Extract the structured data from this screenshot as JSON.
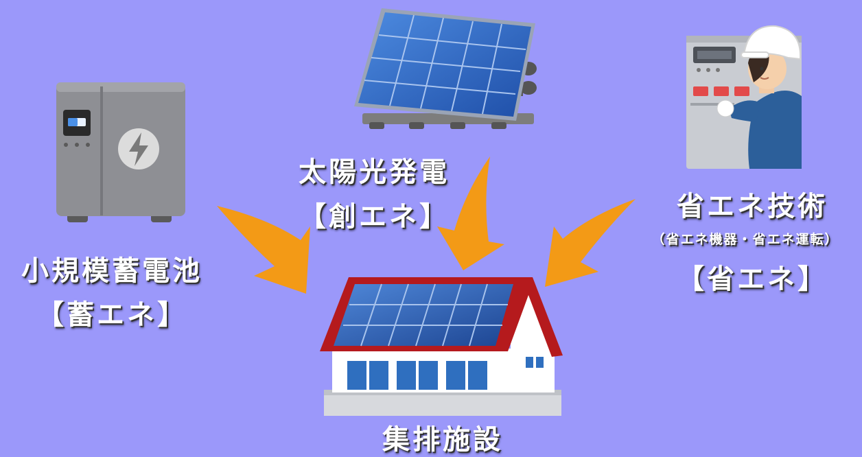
{
  "nodes": {
    "solar": {
      "title": "太陽光発電",
      "subtitle": "【創エネ】"
    },
    "storage": {
      "title": "小規模蓄電池",
      "subtitle": "【蓄エネ】"
    },
    "efficiency": {
      "title": "省エネ技術",
      "note": "（省エネ機器・省エネ運転）",
      "subtitle": "【省エネ】"
    },
    "facility": {
      "title": "集排施設"
    }
  },
  "colors": {
    "background": "#9b98fa",
    "arrow": "#f39a16",
    "roof": "#b51a1d",
    "panel": "#2f68c4",
    "battery": "#8e8f94",
    "jacket": "#2c5f9a"
  }
}
